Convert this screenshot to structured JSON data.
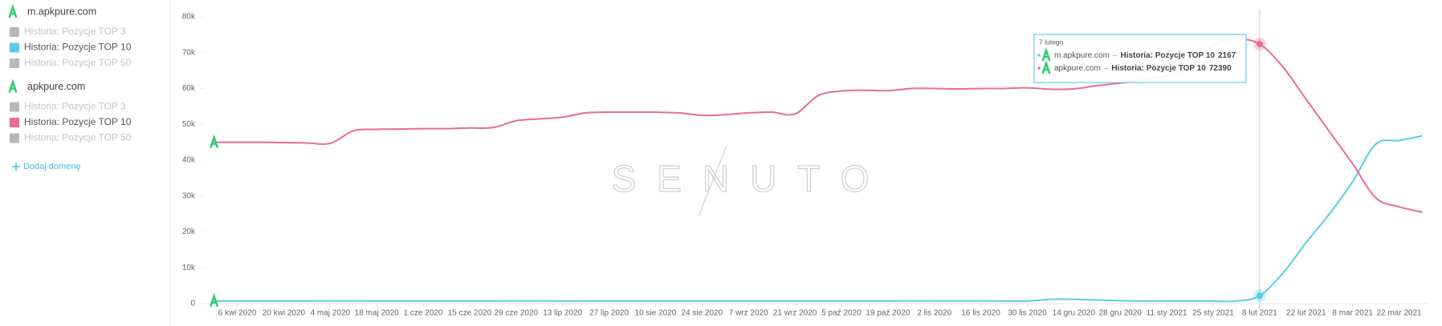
{
  "sidebar": {
    "domains": [
      {
        "name": "m.apkpure.com",
        "metrics": [
          {
            "label": "Historia: Pozycje TOP 3",
            "color": "#b8b8b8",
            "active": false
          },
          {
            "label": "Historia: Pozycje TOP 10",
            "color": "#5ccbea",
            "active": true
          },
          {
            "label": "Historia: Pozycje TOP 50",
            "color": "#b8b8b8",
            "active": false
          }
        ]
      },
      {
        "name": "apkpure.com",
        "metrics": [
          {
            "label": "Historia: Pozycje TOP 3",
            "color": "#b8b8b8",
            "active": false
          },
          {
            "label": "Historia: Pozycje TOP 10",
            "color": "#e96b9c",
            "active": true
          },
          {
            "label": "Historia: Pozycje TOP 50",
            "color": "#b8b8b8",
            "active": false
          }
        ]
      }
    ],
    "add_domain": "Dodaj domenę"
  },
  "chart_data": {
    "type": "line",
    "watermark": "SENUTO",
    "categories": [
      null,
      "6 kwi 2020",
      null,
      "20 kwi 2020",
      null,
      "4 maj 2020",
      null,
      "18 maj 2020",
      null,
      "1 cze 2020",
      null,
      "15 cze 2020",
      null,
      "29 cze 2020",
      null,
      "13 lip 2020",
      null,
      "27 lip 2020",
      null,
      "10 sie 2020",
      null,
      "24 sie 2020",
      null,
      "7 wrz 2020",
      null,
      "21 wrz 2020",
      null,
      "5 paź 2020",
      null,
      "19 paź 2020",
      null,
      "2 lis 2020",
      null,
      "16 lis 2020",
      null,
      "30 lis 2020",
      null,
      "14 gru 2020",
      null,
      "28 gru 2020",
      null,
      "11 sty 2021",
      null,
      "25 sty 2021",
      null,
      "8 lut 2021",
      null,
      "22 lut 2021",
      null,
      "8 mar 2021",
      null,
      "22 mar 2021",
      null
    ],
    "series": [
      {
        "name": "m.apkpure.com",
        "color": "#5ccbea",
        "values": [
          700,
          700,
          700,
          700,
          700,
          750,
          750,
          700,
          700,
          700,
          700,
          700,
          700,
          750,
          750,
          700,
          700,
          700,
          700,
          700,
          700,
          700,
          700,
          700,
          700,
          700,
          700,
          700,
          700,
          700,
          750,
          750,
          750,
          750,
          700,
          700,
          1200,
          1200,
          1000,
          800,
          700,
          700,
          700,
          700,
          700,
          2167,
          8500,
          17000,
          25000,
          34000,
          44500,
          45500,
          46800
        ]
      },
      {
        "name": "apkpure.com",
        "color": "#e96b9c",
        "values": [
          45000,
          45000,
          45000,
          44900,
          44800,
          44700,
          48200,
          48600,
          48700,
          48800,
          48800,
          49000,
          49100,
          51000,
          51500,
          52000,
          53200,
          53400,
          53400,
          53400,
          53200,
          52500,
          52700,
          53200,
          53400,
          52900,
          58000,
          59300,
          59500,
          59400,
          60000,
          60000,
          59900,
          60000,
          60000,
          60200,
          59800,
          59900,
          60800,
          61500,
          62500,
          63500,
          65500,
          72000,
          73800,
          72390,
          66000,
          57000,
          48000,
          39000,
          29500,
          27000,
          25500
        ]
      }
    ],
    "ylim": [
      0,
      80000
    ],
    "yticks": [
      0,
      {
        "value": 10000,
        "label": "10k"
      },
      {
        "value": 20000,
        "label": "20k"
      },
      {
        "value": 30000,
        "label": "30k"
      },
      {
        "value": 40000,
        "label": "40k"
      },
      {
        "value": 50000,
        "label": "50k"
      },
      {
        "value": 60000,
        "label": "60k"
      },
      {
        "value": 70000,
        "label": "70k"
      },
      {
        "value": 80000,
        "label": "80k"
      }
    ],
    "grid": false,
    "tooltip": {
      "index": 45,
      "date": "7 lutego",
      "metric": "Historia: Pozycje TOP 10"
    }
  }
}
